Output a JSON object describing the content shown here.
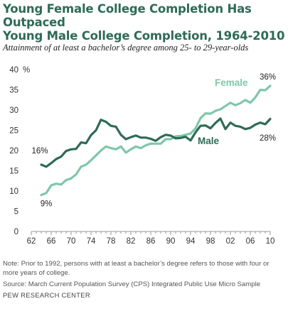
{
  "header": {
    "title_line1": "Young Female College Completion Has Outpaced",
    "title_line2": "Young Male College Completion, 1964-2010",
    "subtitle": "Attainment of at least a bachelor’s degree among 25- to 29-year-olds"
  },
  "footer": {
    "note": "Note: Prior to 1992, persons with at least a bachelor’s degree refers to those with four or more years of college.",
    "source": "Source: March Current Population Survey (CPS) Integrated Public Use Micro Sample",
    "credit": "PEW RESEARCH CENTER"
  },
  "chart_data": {
    "type": "line",
    "title": "Young Female College Completion Has Outpaced Young Male College Completion, 1964-2010",
    "subtitle": "Attainment of at least a bachelor’s degree among 25- to 29-year-olds",
    "xlabel": "",
    "ylabel": "%",
    "xlim": [
      1962,
      2010
    ],
    "ylim": [
      0,
      40
    ],
    "x_ticks": [
      1962,
      1966,
      1970,
      1974,
      1978,
      1982,
      1986,
      1990,
      1994,
      1998,
      2002,
      2006,
      2010
    ],
    "x_tick_labels": [
      "62",
      "66",
      "70",
      "74",
      "78",
      "82",
      "86",
      "90",
      "94",
      "98",
      "02",
      "06",
      "10"
    ],
    "y_ticks": [
      0,
      5,
      10,
      15,
      20,
      25,
      30,
      35,
      40
    ],
    "y_tick_labels": [
      "0",
      "5",
      "10",
      "15",
      "20",
      "25",
      "30",
      "35",
      "40"
    ],
    "grid": false,
    "x": [
      1964,
      1965,
      1966,
      1967,
      1968,
      1969,
      1970,
      1971,
      1972,
      1973,
      1974,
      1975,
      1976,
      1977,
      1978,
      1979,
      1980,
      1981,
      1982,
      1983,
      1984,
      1985,
      1986,
      1987,
      1988,
      1989,
      1990,
      1991,
      1992,
      1993,
      1994,
      1995,
      1996,
      1997,
      1998,
      1999,
      2000,
      2001,
      2002,
      2003,
      2004,
      2005,
      2006,
      2007,
      2008,
      2009,
      2010
    ],
    "series": [
      {
        "name": "Female",
        "color": "#7fc7a9",
        "values": [
          9.0,
          9.5,
          11.4,
          11.8,
          11.6,
          12.7,
          13.1,
          14.1,
          16.0,
          16.5,
          17.6,
          18.8,
          20.0,
          21.0,
          20.6,
          20.3,
          21.0,
          19.5,
          20.3,
          21.0,
          20.6,
          21.3,
          21.7,
          21.7,
          21.7,
          22.8,
          22.8,
          23.5,
          23.6,
          23.9,
          24.2,
          25.5,
          28.0,
          29.2,
          29.1,
          29.8,
          30.2,
          31.0,
          31.8,
          31.2,
          31.7,
          32.5,
          31.8,
          33.1,
          35.0,
          34.9,
          36.0
        ],
        "end_label": "36%",
        "start_label": "9%"
      },
      {
        "name": "Male",
        "color": "#2e6b57",
        "values": [
          16.5,
          16.0,
          16.9,
          17.9,
          18.5,
          19.9,
          20.3,
          20.4,
          22.0,
          21.8,
          23.8,
          25.0,
          27.6,
          27.1,
          26.1,
          25.9,
          23.9,
          22.8,
          23.3,
          23.7,
          23.2,
          23.2,
          22.9,
          22.4,
          23.3,
          23.9,
          23.7,
          23.0,
          23.1,
          23.4,
          22.5,
          24.5,
          26.1,
          26.2,
          25.5,
          26.8,
          27.9,
          25.3,
          26.9,
          26.1,
          25.9,
          25.3,
          25.6,
          26.4,
          26.9,
          26.5,
          27.8
        ],
        "end_label": "28%",
        "start_label": "16%"
      }
    ]
  }
}
